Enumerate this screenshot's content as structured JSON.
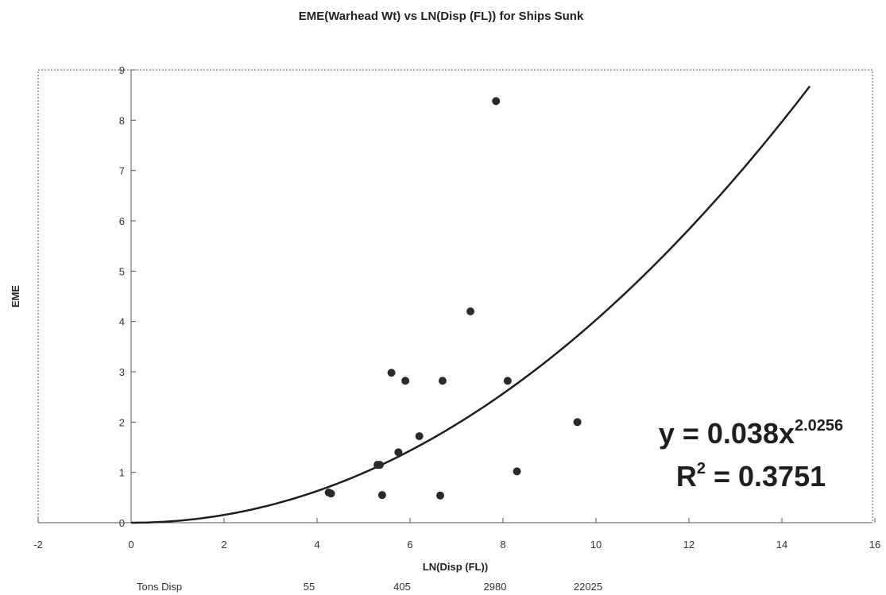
{
  "chart_data": {
    "type": "scatter",
    "title": "EME(Warhead Wt) vs LN(Disp (FL)) for Ships Sunk",
    "xlabel": "LN(Disp (FL))",
    "ylabel": "EME",
    "xlim": [
      -2,
      16
    ],
    "ylim": [
      0,
      9
    ],
    "x_ticks": [
      -2,
      0,
      2,
      4,
      6,
      8,
      10,
      12,
      14,
      16
    ],
    "y_ticks": [
      0,
      1,
      2,
      3,
      4,
      5,
      6,
      7,
      8,
      9
    ],
    "grid": false,
    "legend": "none",
    "colors": {
      "points": "#2a2a2a",
      "trendline": "#1e1e1e",
      "frame": "#555555"
    },
    "points": [
      {
        "x": 4.25,
        "y": 0.6
      },
      {
        "x": 4.3,
        "y": 0.58
      },
      {
        "x": 5.3,
        "y": 1.15
      },
      {
        "x": 5.35,
        "y": 1.15
      },
      {
        "x": 5.4,
        "y": 0.55
      },
      {
        "x": 5.6,
        "y": 2.98
      },
      {
        "x": 5.75,
        "y": 1.4
      },
      {
        "x": 5.9,
        "y": 2.82
      },
      {
        "x": 6.2,
        "y": 1.72
      },
      {
        "x": 6.65,
        "y": 0.54
      },
      {
        "x": 6.7,
        "y": 2.82
      },
      {
        "x": 7.3,
        "y": 4.2
      },
      {
        "x": 7.85,
        "y": 8.38
      },
      {
        "x": 8.1,
        "y": 2.82
      },
      {
        "x": 8.3,
        "y": 1.02
      },
      {
        "x": 9.6,
        "y": 2.0
      }
    ],
    "trendline": {
      "type": "power",
      "coefficient": 0.038,
      "exponent": 2.0256,
      "x_range": [
        0,
        14.6
      ],
      "equation_prefix": "y = 0.038x",
      "equation_exponent": "2.0256",
      "r2_prefix": "R",
      "r2_exponent": "2",
      "r2_suffix": " = 0.3751"
    },
    "secondary_row": {
      "label": "Tons Disp",
      "values": [
        {
          "x": 4,
          "text": "55"
        },
        {
          "x": 6,
          "text": "405"
        },
        {
          "x": 8,
          "text": "2980"
        },
        {
          "x": 10,
          "text": "22025"
        }
      ]
    }
  }
}
